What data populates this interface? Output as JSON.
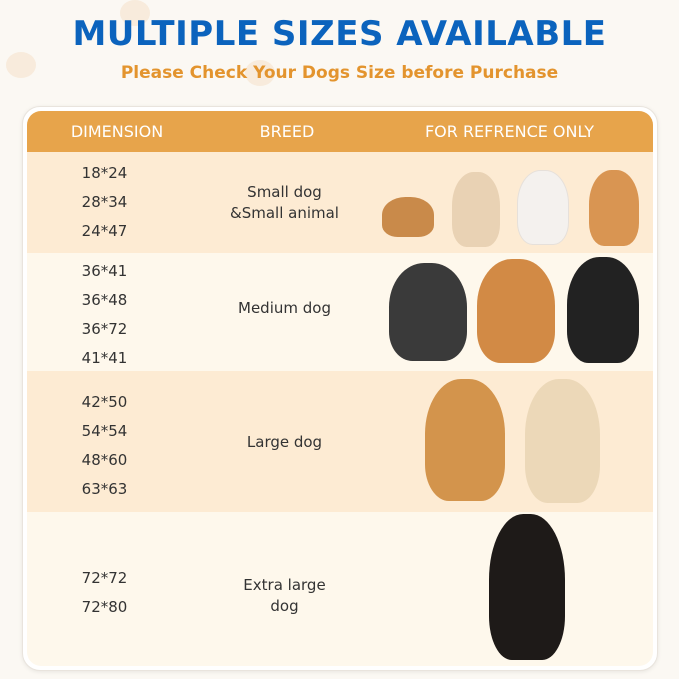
{
  "title": "MULTIPLE SIZES AVAILABLE",
  "subtitle": "Please Check Your Dogs Size before Purchase",
  "colors": {
    "title": "#0b63bd",
    "subtitle": "#e3942e",
    "header": "#e7a44b",
    "row_peach": "#fdebd3",
    "row_light": "#fef8ec"
  },
  "table": {
    "headers": [
      "DIMENSION",
      "BREED",
      "FOR REFRENCE ONLY"
    ],
    "rows": [
      {
        "dimensions": [
          "18*24",
          "28*34",
          "24*47"
        ],
        "breed": [
          "Small dog",
          "&Small animal"
        ],
        "images": [
          "guinea-pig",
          "chihuahua",
          "bichon",
          "corgi-puppy"
        ]
      },
      {
        "dimensions": [
          "36*41",
          "36*48",
          "36*72",
          "41*41"
        ],
        "breed": [
          "Medium dog"
        ],
        "images": [
          "french-bulldog",
          "shiba-inu",
          "border-collie"
        ]
      },
      {
        "dimensions": [
          "42*50",
          "54*54",
          "48*60",
          "63*63"
        ],
        "breed": [
          "Large dog"
        ],
        "images": [
          "golden-retriever",
          "labrador"
        ]
      },
      {
        "dimensions": [
          "72*72",
          "72*80"
        ],
        "breed": [
          "Extra large",
          "dog"
        ],
        "images": [
          "doberman"
        ]
      }
    ]
  }
}
